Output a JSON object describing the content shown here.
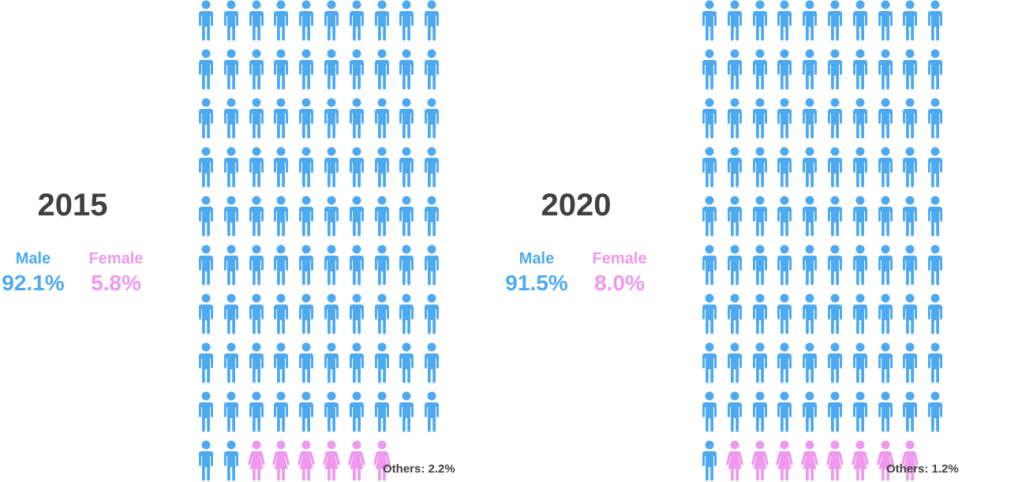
{
  "chart_data": {
    "type": "pictograph",
    "panels": [
      {
        "year": "2015",
        "male": {
          "label": "Male",
          "value_text": "92.1%",
          "value": 92.1,
          "icons": 92
        },
        "female": {
          "label": "Female",
          "value_text": "5.8%",
          "value": 5.8,
          "icons": 6
        },
        "others": {
          "label": "Others: 2.2%",
          "value": 2.2
        }
      },
      {
        "year": "2020",
        "male": {
          "label": "Male",
          "value_text": "91.5%",
          "value": 91.5,
          "icons": 91
        },
        "female": {
          "label": "Female",
          "value_text": "8.0%",
          "value": 8.0,
          "icons": 8
        },
        "others": {
          "label": "Others: 1.2%",
          "value": 1.2
        }
      }
    ],
    "grid": {
      "columns": 10,
      "rows": 10
    },
    "colors": {
      "male": "#4eaaf0",
      "female": "#ee99ee",
      "text": "#404040"
    }
  }
}
